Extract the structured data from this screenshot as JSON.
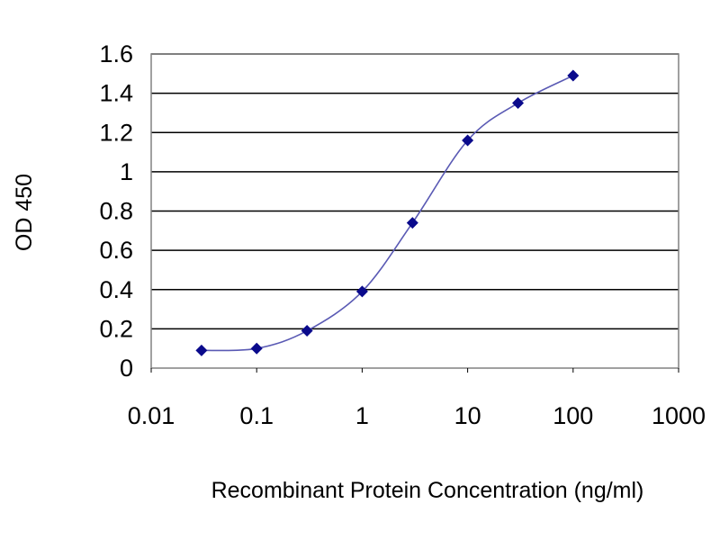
{
  "chart_data": {
    "type": "scatter",
    "title": "",
    "xlabel": "Recombinant Protein Concentration (ng/ml)",
    "ylabel": "OD 450",
    "x_scale": "log",
    "xlim": [
      0.01,
      1000
    ],
    "ylim": [
      0,
      1.6
    ],
    "x_ticks": [
      "0.01",
      "0.1",
      "1",
      "10",
      "100",
      "1000"
    ],
    "y_ticks": [
      "0",
      "0.2",
      "0.4",
      "0.6",
      "0.8",
      "1",
      "1.2",
      "1.4",
      "1.6"
    ],
    "grid": "horizontal",
    "legend": "none",
    "series": [
      {
        "x": [
          0.03,
          0.1,
          0.3,
          1,
          3,
          10,
          30,
          100
        ],
        "y": [
          0.09,
          0.1,
          0.19,
          0.39,
          0.74,
          1.16,
          1.35,
          1.49
        ],
        "color": "#0a0a8c"
      }
    ],
    "colors": {
      "line": "#5a5ab4",
      "marker": "#0a0a8c",
      "grid": "#000000",
      "plot_background": "#ffffff"
    }
  }
}
